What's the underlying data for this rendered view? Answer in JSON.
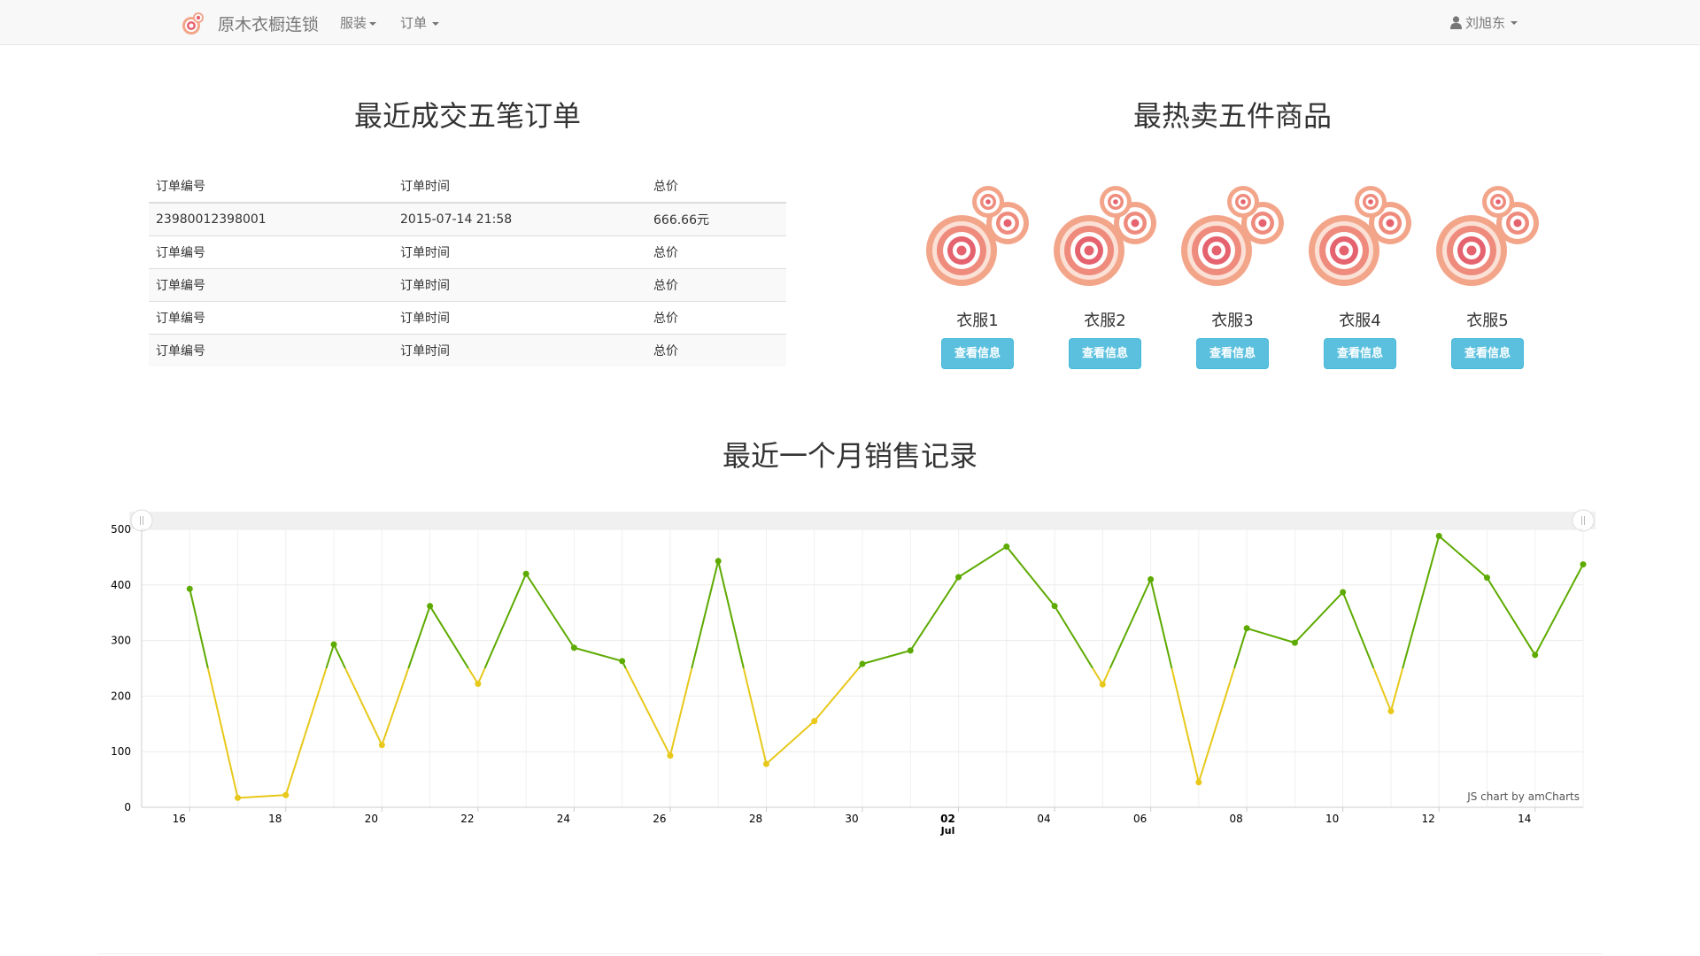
{
  "navbar": {
    "brand": "原木衣橱连锁",
    "menu": [
      {
        "label": "服装"
      },
      {
        "label": "订单"
      }
    ],
    "user": "刘旭东"
  },
  "orders": {
    "title": "最近成交五笔订单",
    "headers": [
      "订单编号",
      "订单时间",
      "总价"
    ],
    "rows": [
      [
        "23980012398001",
        "2015-07-14 21:58",
        "666.66元"
      ],
      [
        "订单编号",
        "订单时间",
        "总价"
      ],
      [
        "订单编号",
        "订单时间",
        "总价"
      ],
      [
        "订单编号",
        "订单时间",
        "总价"
      ],
      [
        "订单编号",
        "订单时间",
        "总价"
      ]
    ]
  },
  "products": {
    "title": "最热卖五件商品",
    "button_label": "查看信息",
    "items": [
      {
        "name": "衣服1"
      },
      {
        "name": "衣服2"
      },
      {
        "name": "衣服3"
      },
      {
        "name": "衣服4"
      },
      {
        "name": "衣服5"
      }
    ]
  },
  "sales": {
    "title": "最近一个月销售记录",
    "credit": "JS chart by amCharts"
  },
  "colors": {
    "line_high": "#5daa00",
    "line_low": "#e8c81a",
    "accent_button": "#5bc0de"
  },
  "chart_data": {
    "type": "line",
    "threshold": 250,
    "ylim": [
      0,
      500
    ],
    "y_ticks": [
      0,
      100,
      200,
      300,
      400,
      500
    ],
    "x_tick_labels": [
      {
        "label": "16",
        "date": "2015-06-16"
      },
      {
        "label": "18",
        "date": "2015-06-18"
      },
      {
        "label": "20",
        "date": "2015-06-20"
      },
      {
        "label": "22",
        "date": "2015-06-22"
      },
      {
        "label": "24",
        "date": "2015-06-24"
      },
      {
        "label": "26",
        "date": "2015-06-26"
      },
      {
        "label": "28",
        "date": "2015-06-28"
      },
      {
        "label": "30",
        "date": "2015-06-30"
      },
      {
        "label": "02",
        "sub": "Jul",
        "date": "2015-07-02",
        "bold": true
      },
      {
        "label": "04",
        "date": "2015-07-04"
      },
      {
        "label": "06",
        "date": "2015-07-06"
      },
      {
        "label": "08",
        "date": "2015-07-08"
      },
      {
        "label": "10",
        "date": "2015-07-10"
      },
      {
        "label": "12",
        "date": "2015-07-12"
      },
      {
        "label": "14",
        "date": "2015-07-14"
      }
    ],
    "x_start": "2015-06-15",
    "x_end": "2015-07-15",
    "points": [
      {
        "date": "2015-06-16",
        "value": 393
      },
      {
        "date": "2015-06-17",
        "value": 17
      },
      {
        "date": "2015-06-18",
        "value": 22
      },
      {
        "date": "2015-06-19",
        "value": 293
      },
      {
        "date": "2015-06-20",
        "value": 112
      },
      {
        "date": "2015-06-21",
        "value": 362
      },
      {
        "date": "2015-06-22",
        "value": 222
      },
      {
        "date": "2015-06-23",
        "value": 420
      },
      {
        "date": "2015-06-24",
        "value": 287
      },
      {
        "date": "2015-06-25",
        "value": 263
      },
      {
        "date": "2015-06-26",
        "value": 93
      },
      {
        "date": "2015-06-27",
        "value": 443
      },
      {
        "date": "2015-06-28",
        "value": 78
      },
      {
        "date": "2015-06-29",
        "value": 155
      },
      {
        "date": "2015-06-30",
        "value": 258
      },
      {
        "date": "2015-07-01",
        "value": 282
      },
      {
        "date": "2015-07-02",
        "value": 414
      },
      {
        "date": "2015-07-03",
        "value": 469
      },
      {
        "date": "2015-07-04",
        "value": 362
      },
      {
        "date": "2015-07-05",
        "value": 221
      },
      {
        "date": "2015-07-06",
        "value": 410
      },
      {
        "date": "2015-07-07",
        "value": 45
      },
      {
        "date": "2015-07-08",
        "value": 322
      },
      {
        "date": "2015-07-09",
        "value": 296
      },
      {
        "date": "2015-07-10",
        "value": 387
      },
      {
        "date": "2015-07-11",
        "value": 173
      },
      {
        "date": "2015-07-12",
        "value": 488
      },
      {
        "date": "2015-07-13",
        "value": 413
      },
      {
        "date": "2015-07-14",
        "value": 274
      },
      {
        "date": "2015-07-15",
        "value": 437
      }
    ]
  }
}
